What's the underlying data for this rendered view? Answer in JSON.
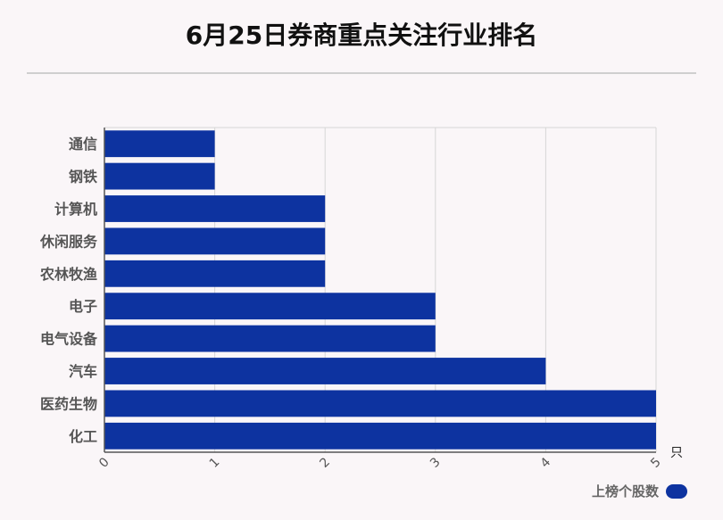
{
  "chart_data": {
    "type": "bar",
    "orientation": "horizontal",
    "title": "6月25日券商重点关注行业排名",
    "categories": [
      "通信",
      "钢铁",
      "计算机",
      "休闲服务",
      "农林牧渔",
      "电子",
      "电气设备",
      "汽车",
      "医药生物",
      "化工"
    ],
    "series": [
      {
        "name": "上榜个股数",
        "values": [
          1,
          1,
          2,
          2,
          2,
          3,
          3,
          4,
          5,
          5
        ]
      }
    ],
    "x_ticks": [
      "0",
      "1",
      "2",
      "3",
      "4",
      "5"
    ],
    "xlim": [
      0,
      5
    ],
    "unit_label": "只",
    "grid": true,
    "legend_position": "bottom-right",
    "colors": {
      "bar": "#0d33a0",
      "grid": "#d6d6d6",
      "axis": "#555555",
      "label": "#555555"
    }
  }
}
